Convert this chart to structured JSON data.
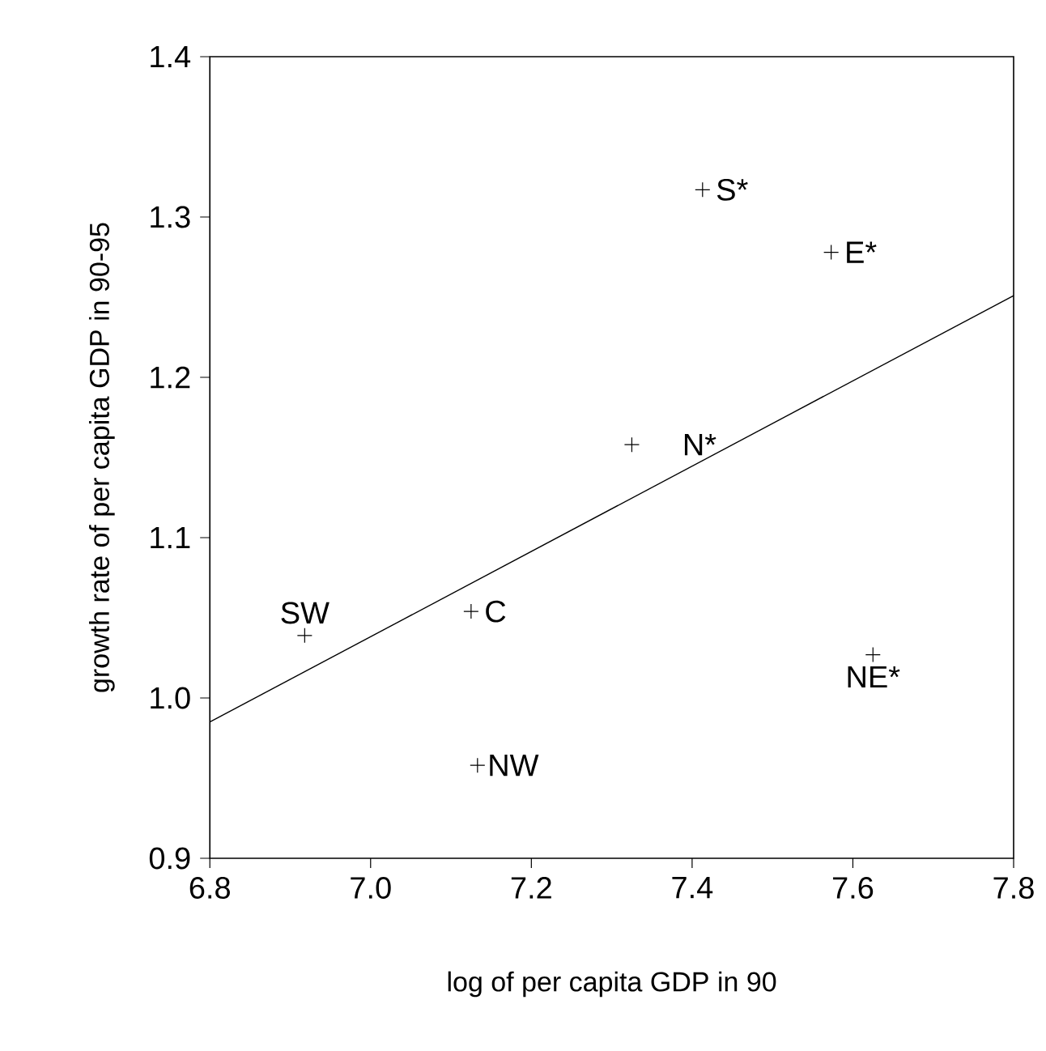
{
  "chart_data": {
    "type": "scatter",
    "xlabel": "log of per capita GDP in 90",
    "ylabel": "growth rate of per capita GDP in 90-95",
    "series": [
      {
        "color": "#000000",
        "marker": "cross",
        "x": [
          7.413,
          7.573,
          7.325,
          6.918,
          7.125,
          7.133,
          7.625
        ],
        "values": [
          1.317,
          1.278,
          1.158,
          1.039,
          1.054,
          0.958,
          1.027
        ]
      },
      {
        "type": "line",
        "color": "#000000",
        "marker": "none",
        "line_style": "solid",
        "x": [
          6.8,
          7.8
        ],
        "values": [
          0.985,
          1.251
        ]
      }
    ],
    "annotations": [
      {
        "text": "S*",
        "x": 7.413,
        "y": 1.317
      },
      {
        "text": "E*",
        "x": 7.573,
        "y": 1.278
      },
      {
        "text": "N*",
        "x": 7.325,
        "y": 1.158
      },
      {
        "text": "SW",
        "x": 6.918,
        "y": 1.039
      },
      {
        "text": "C",
        "x": 7.125,
        "y": 1.054
      },
      {
        "text": "NW",
        "x": 7.133,
        "y": 0.958
      },
      {
        "text": "NE*",
        "x": 7.625,
        "y": 1.027
      }
    ],
    "xlim": [
      6.8,
      7.8
    ],
    "ylim": [
      0.9,
      1.4
    ],
    "xticks": [
      {
        "value": 6.8,
        "label": "6.8"
      },
      {
        "value": 7.0,
        "label": "7.0"
      },
      {
        "value": 7.2,
        "label": "7.2"
      },
      {
        "value": 7.4,
        "label": "7.4"
      },
      {
        "value": 7.6,
        "label": "7.6"
      },
      {
        "value": 7.8,
        "label": "7.8"
      }
    ],
    "yticks": [
      {
        "value": 0.9,
        "label": "0.9"
      },
      {
        "value": 1.0,
        "label": "1.0"
      },
      {
        "value": 1.1,
        "label": "1.1"
      },
      {
        "value": 1.2,
        "label": "1.2"
      },
      {
        "value": 1.3,
        "label": "1.3"
      },
      {
        "value": 1.4,
        "label": "1.4"
      }
    ],
    "grid": false
  }
}
